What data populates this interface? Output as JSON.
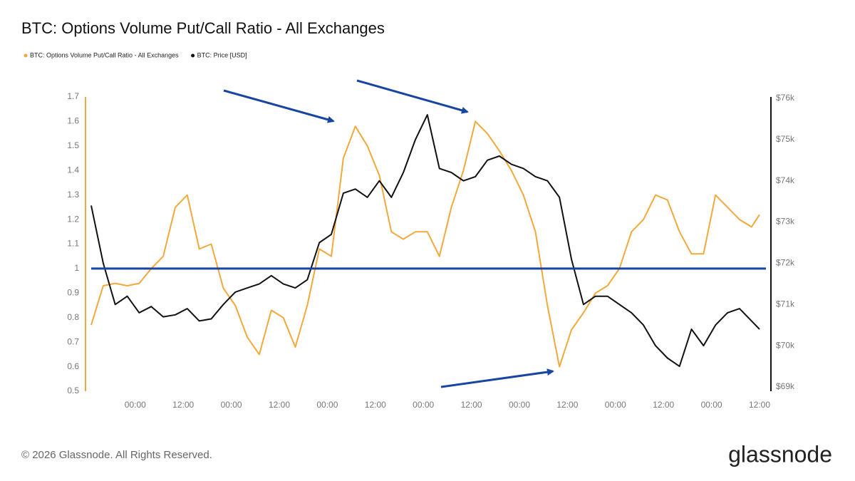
{
  "chart_data": {
    "type": "line",
    "title": "BTC: Options Volume Put/Call Ratio - All Exchanges",
    "x": [
      0,
      3,
      6,
      9,
      12,
      15,
      18,
      21,
      24,
      27,
      30,
      33,
      36,
      39,
      42,
      45,
      48,
      51,
      54,
      57,
      60,
      63,
      66,
      69,
      72,
      75,
      78,
      81,
      84,
      87,
      90,
      93,
      96,
      99,
      102,
      105,
      108,
      111,
      114,
      117,
      120,
      123,
      126,
      129,
      132,
      135,
      138,
      141,
      144,
      147,
      150,
      153,
      156,
      159,
      162,
      165,
      167
    ],
    "xlim": [
      0,
      167
    ],
    "xticks": [
      {
        "value": 11,
        "label": "00:00"
      },
      {
        "value": 23,
        "label": "12:00"
      },
      {
        "value": 35,
        "label": "00:00"
      },
      {
        "value": 47,
        "label": "12:00"
      },
      {
        "value": 59,
        "label": "00:00"
      },
      {
        "value": 71,
        "label": "12:00"
      },
      {
        "value": 83,
        "label": "00:00"
      },
      {
        "value": 95,
        "label": "12:00"
      },
      {
        "value": 107,
        "label": "00:00"
      },
      {
        "value": 119,
        "label": "12:00"
      },
      {
        "value": 131,
        "label": "00:00"
      },
      {
        "value": 143,
        "label": "12:00"
      },
      {
        "value": 155,
        "label": "00:00"
      },
      {
        "value": 167,
        "label": "12:00"
      }
    ],
    "ylim": [
      0.5,
      1.7
    ],
    "yticks": [
      0.5,
      0.6,
      0.7,
      0.8,
      0.9,
      1,
      1.1,
      1.2,
      1.3,
      1.4,
      1.5,
      1.6,
      1.7
    ],
    "y2lim": [
      69000,
      76000
    ],
    "y2ticks": [
      {
        "value": 69000,
        "label": "$69k"
      },
      {
        "value": 70000,
        "label": "$70k"
      },
      {
        "value": 71000,
        "label": "$71k"
      },
      {
        "value": 72000,
        "label": "$72k"
      },
      {
        "value": 73000,
        "label": "$73k"
      },
      {
        "value": 74000,
        "label": "$74k"
      },
      {
        "value": 75000,
        "label": "$75k"
      },
      {
        "value": 76000,
        "label": "$76k"
      }
    ],
    "reference_line": {
      "value": 1,
      "color": "#1746a2"
    },
    "series": [
      {
        "name": "BTC: Options Volume Put/Call Ratio - All Exchanges",
        "color": "#f2a93b",
        "values": [
          0.77,
          0.93,
          0.94,
          0.93,
          0.94,
          1.0,
          1.05,
          1.25,
          1.3,
          1.08,
          1.1,
          0.92,
          0.85,
          0.72,
          0.65,
          0.83,
          0.8,
          0.68,
          0.85,
          1.08,
          1.05,
          1.45,
          1.58,
          1.5,
          1.38,
          1.15,
          1.12,
          1.15,
          1.15,
          1.05,
          1.25,
          1.4,
          1.6,
          1.55,
          1.48,
          1.4,
          1.3,
          1.15,
          0.85,
          0.6,
          0.75,
          0.82,
          0.9,
          0.93,
          1.0,
          1.15,
          1.2,
          1.3,
          1.28,
          1.15,
          1.06,
          1.06,
          1.3,
          1.25,
          1.2,
          1.17,
          1.22
        ]
      },
      {
        "name": "BTC: Price [USD]",
        "color": "#111111",
        "axis": "y2",
        "values": [
          73400,
          72000,
          71000,
          71200,
          70800,
          70950,
          70700,
          70750,
          70900,
          70600,
          70650,
          71000,
          71300,
          71400,
          71500,
          71700,
          71500,
          71400,
          71600,
          72500,
          72700,
          73700,
          73800,
          73600,
          74000,
          73600,
          74200,
          75000,
          75600,
          74300,
          74200,
          74000,
          74100,
          74500,
          74600,
          74400,
          74300,
          74100,
          74000,
          73600,
          72100,
          71000,
          71200,
          71200,
          71000,
          70800,
          70500,
          70000,
          69700,
          69500,
          70400,
          70000,
          70500,
          70800,
          70900,
          70600,
          70400
        ]
      }
    ]
  },
  "footer": "© 2026 Glassnode. All Rights Reserved.",
  "brand": "glassnode"
}
